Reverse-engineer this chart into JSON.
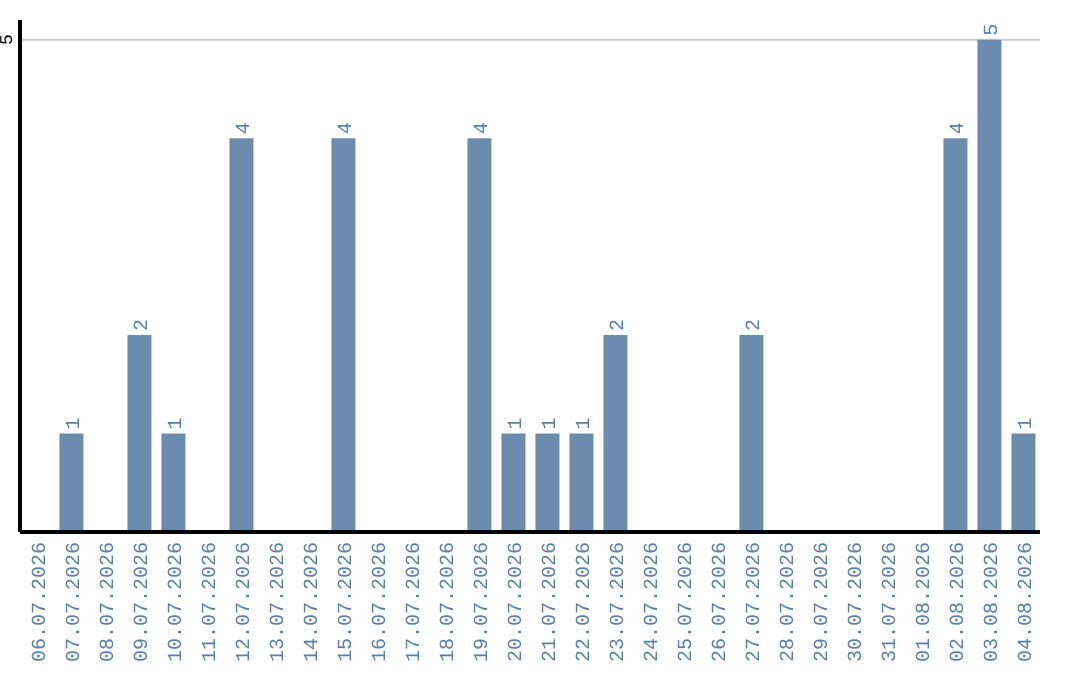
{
  "chart_data": {
    "type": "bar",
    "categories": [
      "06.07.2026",
      "07.07.2026",
      "08.07.2026",
      "09.07.2026",
      "10.07.2026",
      "11.07.2026",
      "12.07.2026",
      "13.07.2026",
      "14.07.2026",
      "15.07.2026",
      "16.07.2026",
      "17.07.2026",
      "18.07.2026",
      "19.07.2026",
      "20.07.2026",
      "21.07.2026",
      "22.07.2026",
      "23.07.2026",
      "24.07.2026",
      "25.07.2026",
      "26.07.2026",
      "27.07.2026",
      "28.07.2026",
      "29.07.2026",
      "30.07.2026",
      "31.07.2026",
      "01.08.2026",
      "02.08.2026",
      "03.08.2026",
      "04.08.2026"
    ],
    "values": [
      0,
      1,
      0,
      2,
      1,
      0,
      4,
      0,
      0,
      4,
      0,
      0,
      0,
      4,
      1,
      1,
      1,
      2,
      0,
      0,
      0,
      2,
      0,
      0,
      0,
      0,
      0,
      4,
      5,
      1
    ],
    "value_labels": [
      null,
      "1",
      null,
      "2",
      "1",
      null,
      "4",
      null,
      null,
      "4",
      null,
      null,
      null,
      "4",
      "1",
      "1",
      "1",
      "2",
      null,
      null,
      null,
      "2",
      null,
      null,
      null,
      null,
      null,
      "4",
      "5",
      "1"
    ],
    "color": "#6b8cad",
    "ylim": [
      0,
      5.2
    ],
    "yticks": [
      5
    ],
    "grid": "y"
  }
}
